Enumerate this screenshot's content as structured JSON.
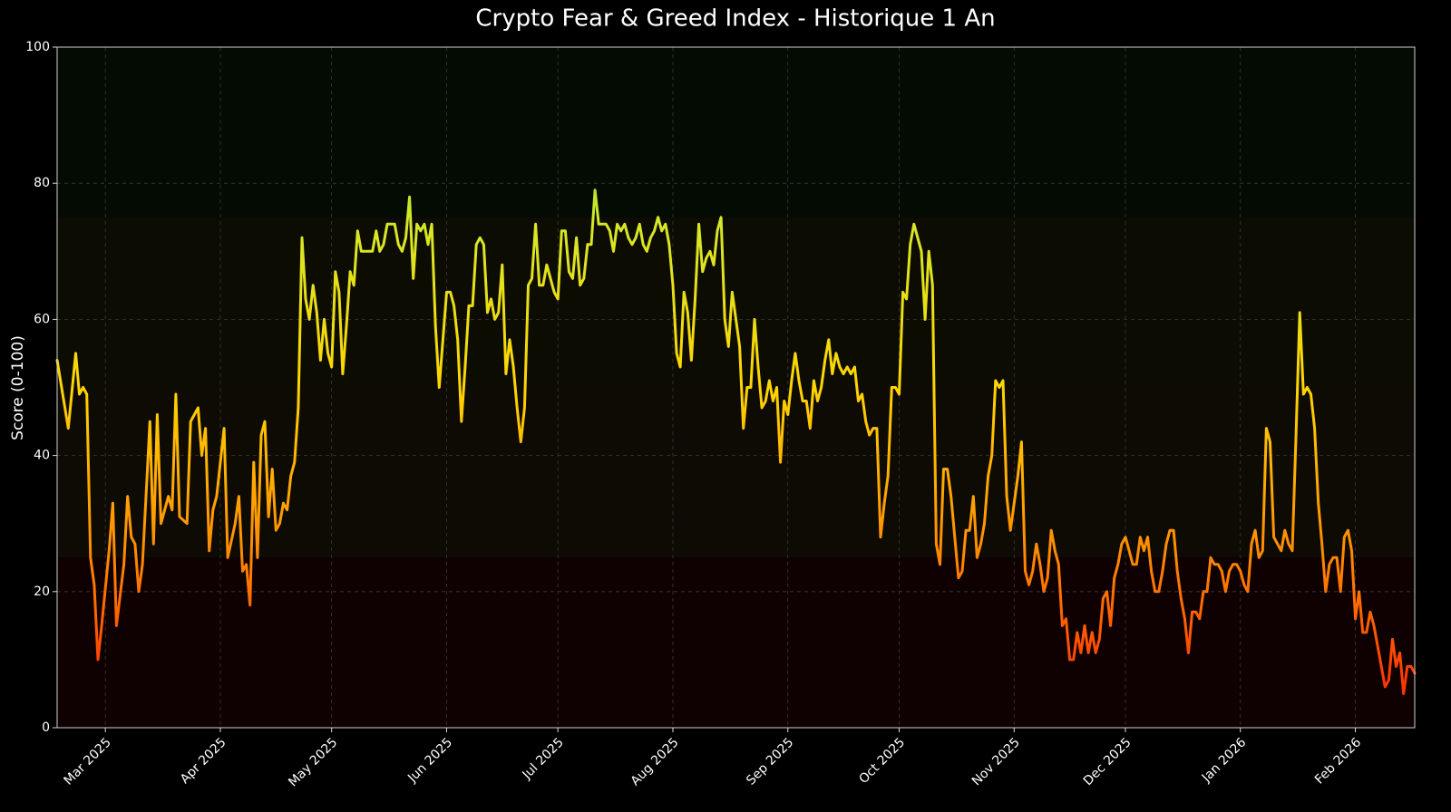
{
  "chart_data": {
    "type": "line",
    "title": "Crypto Fear & Greed Index - Historique 1 An",
    "ylabel": "Score (0-100)",
    "ylim": [
      0,
      100
    ],
    "yticks": [
      0,
      20,
      40,
      60,
      80,
      100
    ],
    "xlim": [
      -13,
      353
    ],
    "xticks": [
      {
        "value": 0,
        "label": "Mar 2025"
      },
      {
        "value": 31,
        "label": "Apr 2025"
      },
      {
        "value": 61,
        "label": "May 2025"
      },
      {
        "value": 92,
        "label": "Jun 2025"
      },
      {
        "value": 122,
        "label": "Jul 2025"
      },
      {
        "value": 153,
        "label": "Aug 2025"
      },
      {
        "value": 184,
        "label": "Sep 2025"
      },
      {
        "value": 214,
        "label": "Oct 2025"
      },
      {
        "value": 245,
        "label": "Nov 2025"
      },
      {
        "value": 275,
        "label": "Dec 2025"
      },
      {
        "value": 306,
        "label": "Jan 2026"
      },
      {
        "value": 337,
        "label": "Feb 2026"
      }
    ],
    "grid": true,
    "color_scale": [
      "#ff1a00",
      "#ff8800",
      "#ffd500",
      "#d4e82a",
      "#2ecc40"
    ],
    "zones": [
      {
        "from": 0,
        "to": 25,
        "color": "#0f0101"
      },
      {
        "from": 25,
        "to": 50,
        "color": "#0e0a04"
      },
      {
        "from": 50,
        "to": 75,
        "color": "#0c0c03"
      },
      {
        "from": 75,
        "to": 100,
        "color": "#030b03"
      }
    ],
    "x": [
      -13,
      -10,
      -8,
      -7,
      -6,
      -5,
      -4,
      -3,
      -2,
      -1,
      1,
      2,
      3,
      5,
      6,
      7,
      8,
      9,
      10,
      12,
      13,
      14,
      15,
      17,
      18,
      19,
      20,
      22,
      23,
      25,
      26,
      27,
      28,
      29,
      30,
      32,
      33,
      35,
      36,
      37,
      38,
      39,
      40,
      41,
      42,
      43,
      44,
      45,
      46,
      47,
      48,
      49,
      50,
      51,
      52,
      53,
      54,
      55,
      56,
      57,
      58,
      59,
      60,
      61,
      62,
      63,
      64,
      65,
      66,
      67,
      68,
      69,
      72,
      73,
      74,
      75,
      76,
      78,
      79,
      80,
      81,
      82,
      83,
      84,
      85,
      86,
      87,
      88,
      89,
      90,
      91,
      92,
      93,
      94,
      95,
      96,
      97,
      98,
      99,
      100,
      101,
      102,
      103,
      104,
      105,
      106,
      107,
      108,
      109,
      110,
      111,
      112,
      113,
      114,
      115,
      116,
      117,
      118,
      119,
      120,
      121,
      122,
      123,
      124,
      125,
      126,
      127,
      128,
      129,
      130,
      131,
      132,
      133,
      135,
      136,
      137,
      138,
      139,
      140,
      141,
      142,
      143,
      144,
      145,
      146,
      147,
      148,
      149,
      150,
      151,
      152,
      153,
      154,
      155,
      156,
      157,
      158,
      159,
      160,
      161,
      162,
      163,
      164,
      165,
      166,
      167,
      168,
      169,
      170,
      171,
      172,
      173,
      174,
      175,
      176,
      177,
      178,
      179,
      180,
      181,
      182,
      183,
      184,
      185,
      186,
      187,
      188,
      189,
      190,
      191,
      192,
      193,
      194,
      195,
      196,
      197,
      198,
      199,
      200,
      201,
      202,
      203,
      204,
      205,
      206,
      207,
      208,
      209,
      210,
      211,
      212,
      213,
      214,
      215,
      216,
      217,
      218,
      219,
      220,
      221,
      222,
      223,
      224,
      225,
      226,
      227,
      228,
      229,
      230,
      231,
      232,
      233,
      234,
      235,
      236,
      237,
      238,
      239,
      240,
      241,
      242,
      243,
      244,
      245,
      246,
      247,
      248,
      249,
      250,
      251,
      252,
      253,
      254,
      255,
      256,
      257,
      258,
      259,
      260,
      261,
      262,
      263,
      264,
      265,
      266,
      267,
      268,
      269,
      270,
      271,
      272,
      273,
      274,
      275,
      276,
      277,
      278,
      279,
      280,
      281,
      282,
      283,
      284,
      285,
      286,
      287,
      288,
      289,
      290,
      291,
      292,
      293,
      294,
      295,
      296,
      297,
      298,
      299,
      300,
      301,
      302,
      303,
      304,
      305,
      306,
      307,
      308,
      309,
      310,
      311,
      312,
      313,
      314,
      315,
      316,
      317,
      318,
      319,
      320,
      321,
      322,
      323,
      324,
      325,
      326,
      327,
      328,
      329,
      330,
      331,
      332,
      333,
      334,
      335,
      336,
      337,
      338,
      339,
      340,
      341,
      342,
      343,
      344,
      345,
      346,
      347,
      348,
      349,
      350,
      351,
      352,
      353
    ],
    "values": [
      54,
      44,
      55,
      49,
      50,
      49,
      25,
      21,
      10,
      15,
      26,
      33,
      15,
      24,
      34,
      28,
      27,
      20,
      24,
      45,
      27,
      46,
      30,
      34,
      32,
      49,
      31,
      30,
      45,
      47,
      40,
      44,
      26,
      32,
      34,
      44,
      25,
      30,
      34,
      23,
      24,
      18,
      39,
      25,
      43,
      45,
      31,
      38,
      29,
      30,
      33,
      32,
      37,
      39,
      47,
      72,
      63,
      60,
      65,
      61,
      54,
      60,
      55,
      53,
      67,
      64,
      52,
      59,
      67,
      65,
      73,
      70,
      70,
      73,
      70,
      71,
      74,
      74,
      71,
      70,
      72,
      78,
      66,
      74,
      73,
      74,
      71,
      74,
      59,
      50,
      57,
      64,
      64,
      62,
      57,
      45,
      53,
      62,
      62,
      71,
      72,
      71,
      61,
      63,
      60,
      61,
      68,
      52,
      57,
      53,
      47,
      42,
      47,
      65,
      66,
      74,
      65,
      65,
      68,
      66,
      64,
      63,
      73,
      73,
      67,
      66,
      72,
      65,
      66,
      71,
      71,
      79,
      74,
      74,
      73,
      70,
      74,
      73,
      74,
      72,
      71,
      72,
      74,
      71,
      70,
      72,
      73,
      75,
      73,
      74,
      71,
      65,
      55,
      53,
      64,
      61,
      54,
      63,
      74,
      67,
      69,
      70,
      68,
      73,
      75,
      60,
      56,
      64,
      60,
      56,
      44,
      50,
      50,
      60,
      53,
      47,
      48,
      51,
      48,
      50,
      39,
      48,
      46,
      51,
      55,
      51,
      48,
      48,
      44,
      51,
      48,
      50,
      54,
      57,
      52,
      55,
      53,
      52,
      53,
      52,
      53,
      48,
      49,
      45,
      43,
      44,
      44,
      28,
      33,
      37,
      50,
      50,
      49,
      64,
      63,
      71,
      74,
      72,
      70,
      60,
      70,
      65,
      27,
      24,
      38,
      38,
      34,
      28,
      22,
      23,
      29,
      29,
      34,
      25,
      27,
      30,
      37,
      40,
      51,
      50,
      51,
      34,
      29,
      33,
      37,
      42,
      23,
      21,
      23,
      27,
      24,
      20,
      22,
      29,
      26,
      24,
      15,
      16,
      10,
      10,
      14,
      11,
      15,
      11,
      14,
      11,
      13,
      19,
      20,
      15,
      22,
      24,
      27,
      28,
      26,
      24,
      24,
      28,
      26,
      28,
      23,
      20,
      20,
      23,
      27,
      29,
      29,
      23,
      19,
      16,
      11,
      17,
      17,
      16,
      20,
      20,
      25,
      24,
      24,
      23,
      20,
      23,
      24,
      24,
      23,
      21,
      20,
      27,
      29,
      25,
      26,
      44,
      42,
      28,
      27,
      26,
      29,
      27,
      26,
      43,
      61,
      49,
      50,
      49,
      44,
      33,
      27,
      20,
      24,
      25,
      25,
      20,
      28,
      29,
      26,
      16,
      20,
      14,
      14,
      17,
      15,
      12,
      9,
      6,
      7,
      13,
      9,
      11,
      5,
      9,
      9,
      8
    ]
  }
}
